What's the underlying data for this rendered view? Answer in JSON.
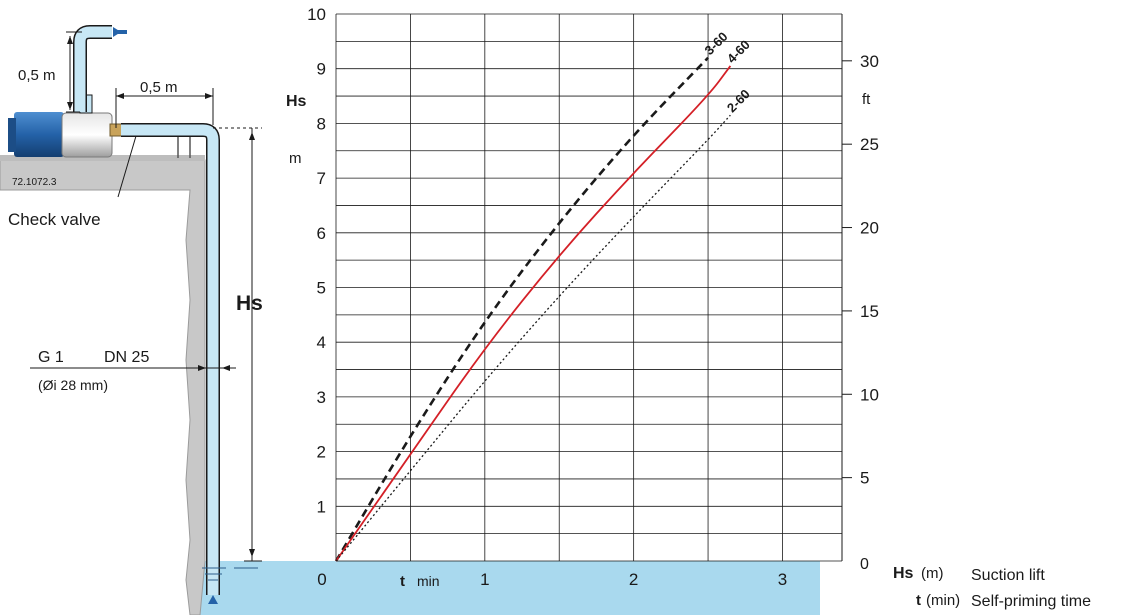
{
  "diagram": {
    "dim_vertical": "0,5 m",
    "dim_horizontal": "0,5 m",
    "model_code": "72.1072.3",
    "check_valve": "Check valve",
    "hs_label": "Hs",
    "pipe_size": "G 1",
    "pipe_dn": "DN 25",
    "pipe_inner": "(Øi 28 mm)"
  },
  "chart_data": {
    "type": "line",
    "x": [
      0,
      0.5,
      1,
      1.5,
      2,
      2.5,
      2.65
    ],
    "series": [
      {
        "name": "3-60",
        "y": [
          0,
          2.3,
          4.4,
          6.2,
          7.8,
          9.2,
          null
        ],
        "style": "dashed",
        "color": "#1a1a1a"
      },
      {
        "name": "4-60",
        "y": [
          0,
          1.95,
          3.9,
          5.6,
          7.1,
          8.5,
          9.05
        ],
        "style": "solid",
        "color": "#d42027"
      },
      {
        "name": "2-60",
        "y": [
          0,
          1.65,
          3.3,
          4.85,
          6.3,
          7.7,
          8.15
        ],
        "style": "dotted",
        "color": "#1a1a1a"
      }
    ],
    "xlim": [
      0,
      3.4
    ],
    "ylim": [
      0,
      10
    ],
    "xticks": [
      "0",
      "1",
      "2",
      "3"
    ],
    "yticks": [
      "0",
      "1",
      "2",
      "3",
      "4",
      "5",
      "6",
      "7",
      "8",
      "9",
      "10"
    ],
    "yright_ticks": [
      "5",
      "10",
      "15",
      "20",
      "25",
      "30"
    ],
    "ylabel": "Hs",
    "ylabel_unit": "m",
    "yright_unit": "ft",
    "xlabel": "t",
    "xlabel_unit": "min",
    "legend": [
      {
        "sym": "Hs",
        "unit": "(m)",
        "text": "Suction lift"
      },
      {
        "sym": "t",
        "unit": "(min)",
        "text": "Self-priming time"
      }
    ],
    "colors": {
      "water": "#a9d9ee",
      "pipe": "#c7e7f5",
      "pump_motor": "#2462a8",
      "wall": "#c8c8c8"
    }
  }
}
